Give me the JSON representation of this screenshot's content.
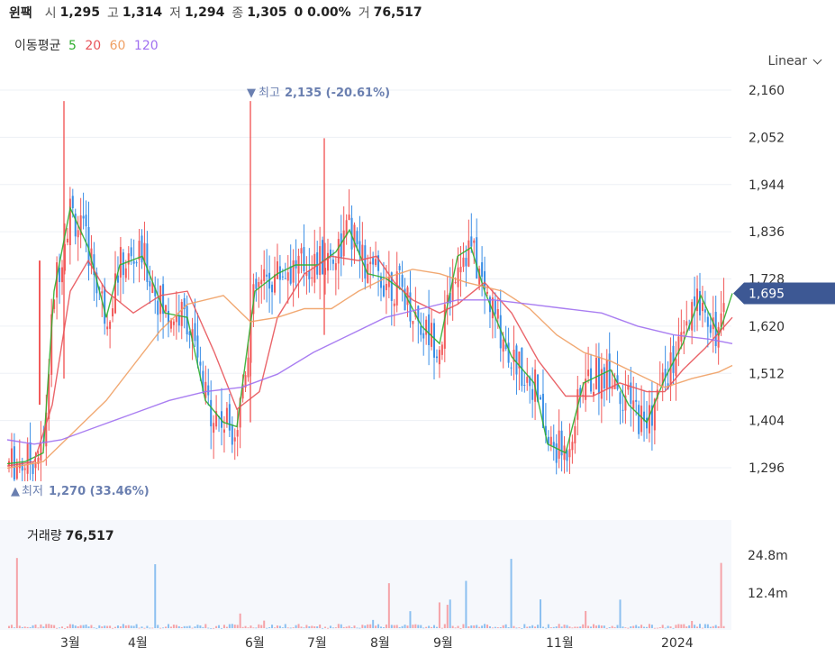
{
  "header": {
    "name": "윈팩",
    "open_label": "시",
    "open": "1,295",
    "high_label": "고",
    "high": "1,314",
    "low_label": "저",
    "low": "1,294",
    "close_label": "종",
    "close": "1,305",
    "change": "0 0.00%",
    "volume_label": "거",
    "volume": "76,517"
  },
  "ma_legend": {
    "title": "이동평균",
    "periods": [
      {
        "label": "5",
        "color": "#2fae2f"
      },
      {
        "label": "20",
        "color": "#e8545a"
      },
      {
        "label": "60",
        "color": "#f0a064"
      },
      {
        "label": "120",
        "color": "#a070f0"
      }
    ]
  },
  "scale_button": {
    "label": "Linear"
  },
  "price_axis": {
    "ticks": [
      "2,160",
      "2,052",
      "1,944",
      "1,836",
      "1,728",
      "1,620",
      "1,512",
      "1,404",
      "1,296"
    ]
  },
  "current_price": {
    "label": "1,695",
    "value": 1695,
    "color": "#3d5894"
  },
  "annotations": {
    "high": {
      "marker": "▼",
      "label": "최고",
      "value_text": "2,135 (-20.61%)",
      "value": 2135
    },
    "low": {
      "marker": "▲",
      "label": "최저",
      "value_text": "1,270 (33.46%)",
      "value": 1270
    }
  },
  "volume_panel": {
    "title": "거래량",
    "value": "76,517",
    "ticks": [
      "24.8m",
      "12.4m"
    ]
  },
  "x_axis": {
    "labels": [
      "3월",
      "4월",
      "6월",
      "7월",
      "8월",
      "9월",
      "11월",
      "2024"
    ]
  },
  "colors": {
    "up": "#f25a5a",
    "down": "#3a8ee6",
    "vol_up": "#f5a3a8",
    "vol_down": "#8cc0f0"
  },
  "chart_data": {
    "type": "candlestick",
    "price_range": [
      1250,
      2175
    ],
    "volume_max_m": 24.8,
    "ma_series": [
      {
        "period": 5,
        "points": [
          [
            0,
            1305
          ],
          [
            20,
            1310
          ],
          [
            40,
            1330
          ],
          [
            52,
            1700
          ],
          [
            70,
            1890
          ],
          [
            90,
            1800
          ],
          [
            110,
            1640
          ],
          [
            125,
            1760
          ],
          [
            150,
            1780
          ],
          [
            175,
            1650
          ],
          [
            200,
            1640
          ],
          [
            220,
            1450
          ],
          [
            240,
            1400
          ],
          [
            255,
            1390
          ],
          [
            275,
            1700
          ],
          [
            300,
            1740
          ],
          [
            320,
            1760
          ],
          [
            345,
            1760
          ],
          [
            365,
            1790
          ],
          [
            380,
            1840
          ],
          [
            400,
            1740
          ],
          [
            420,
            1730
          ],
          [
            440,
            1700
          ],
          [
            460,
            1620
          ],
          [
            480,
            1580
          ],
          [
            500,
            1780
          ],
          [
            515,
            1800
          ],
          [
            530,
            1700
          ],
          [
            560,
            1550
          ],
          [
            585,
            1490
          ],
          [
            600,
            1350
          ],
          [
            620,
            1330
          ],
          [
            640,
            1490
          ],
          [
            670,
            1520
          ],
          [
            690,
            1440
          ],
          [
            710,
            1400
          ],
          [
            730,
            1500
          ],
          [
            750,
            1580
          ],
          [
            770,
            1690
          ],
          [
            790,
            1600
          ],
          [
            805,
            1695
          ]
        ]
      },
      {
        "period": 20,
        "points": [
          [
            0,
            1300
          ],
          [
            30,
            1310
          ],
          [
            50,
            1440
          ],
          [
            70,
            1700
          ],
          [
            90,
            1770
          ],
          [
            110,
            1700
          ],
          [
            140,
            1650
          ],
          [
            170,
            1690
          ],
          [
            200,
            1700
          ],
          [
            230,
            1560
          ],
          [
            255,
            1430
          ],
          [
            280,
            1470
          ],
          [
            300,
            1640
          ],
          [
            330,
            1740
          ],
          [
            360,
            1780
          ],
          [
            390,
            1770
          ],
          [
            410,
            1780
          ],
          [
            430,
            1720
          ],
          [
            450,
            1680
          ],
          [
            480,
            1650
          ],
          [
            500,
            1670
          ],
          [
            530,
            1720
          ],
          [
            560,
            1650
          ],
          [
            590,
            1540
          ],
          [
            620,
            1460
          ],
          [
            650,
            1460
          ],
          [
            680,
            1490
          ],
          [
            710,
            1470
          ],
          [
            730,
            1470
          ],
          [
            750,
            1520
          ],
          [
            775,
            1570
          ],
          [
            805,
            1640
          ]
        ]
      },
      {
        "period": 60,
        "points": [
          [
            0,
            1295
          ],
          [
            40,
            1310
          ],
          [
            80,
            1390
          ],
          [
            110,
            1450
          ],
          [
            140,
            1530
          ],
          [
            170,
            1610
          ],
          [
            200,
            1670
          ],
          [
            240,
            1690
          ],
          [
            270,
            1630
          ],
          [
            300,
            1640
          ],
          [
            330,
            1660
          ],
          [
            360,
            1660
          ],
          [
            390,
            1700
          ],
          [
            420,
            1730
          ],
          [
            450,
            1750
          ],
          [
            480,
            1740
          ],
          [
            510,
            1720
          ],
          [
            550,
            1700
          ],
          [
            580,
            1660
          ],
          [
            610,
            1600
          ],
          [
            640,
            1560
          ],
          [
            670,
            1540
          ],
          [
            700,
            1510
          ],
          [
            730,
            1480
          ],
          [
            760,
            1500
          ],
          [
            790,
            1515
          ],
          [
            805,
            1530
          ]
        ]
      },
      {
        "period": 120,
        "points": [
          [
            0,
            1360
          ],
          [
            30,
            1350
          ],
          [
            60,
            1360
          ],
          [
            100,
            1390
          ],
          [
            140,
            1420
          ],
          [
            180,
            1450
          ],
          [
            220,
            1470
          ],
          [
            260,
            1480
          ],
          [
            300,
            1510
          ],
          [
            340,
            1560
          ],
          [
            380,
            1600
          ],
          [
            420,
            1640
          ],
          [
            460,
            1660
          ],
          [
            500,
            1680
          ],
          [
            540,
            1680
          ],
          [
            580,
            1670
          ],
          [
            620,
            1660
          ],
          [
            660,
            1650
          ],
          [
            700,
            1620
          ],
          [
            740,
            1600
          ],
          [
            780,
            1590
          ],
          [
            805,
            1580
          ]
        ]
      }
    ]
  }
}
